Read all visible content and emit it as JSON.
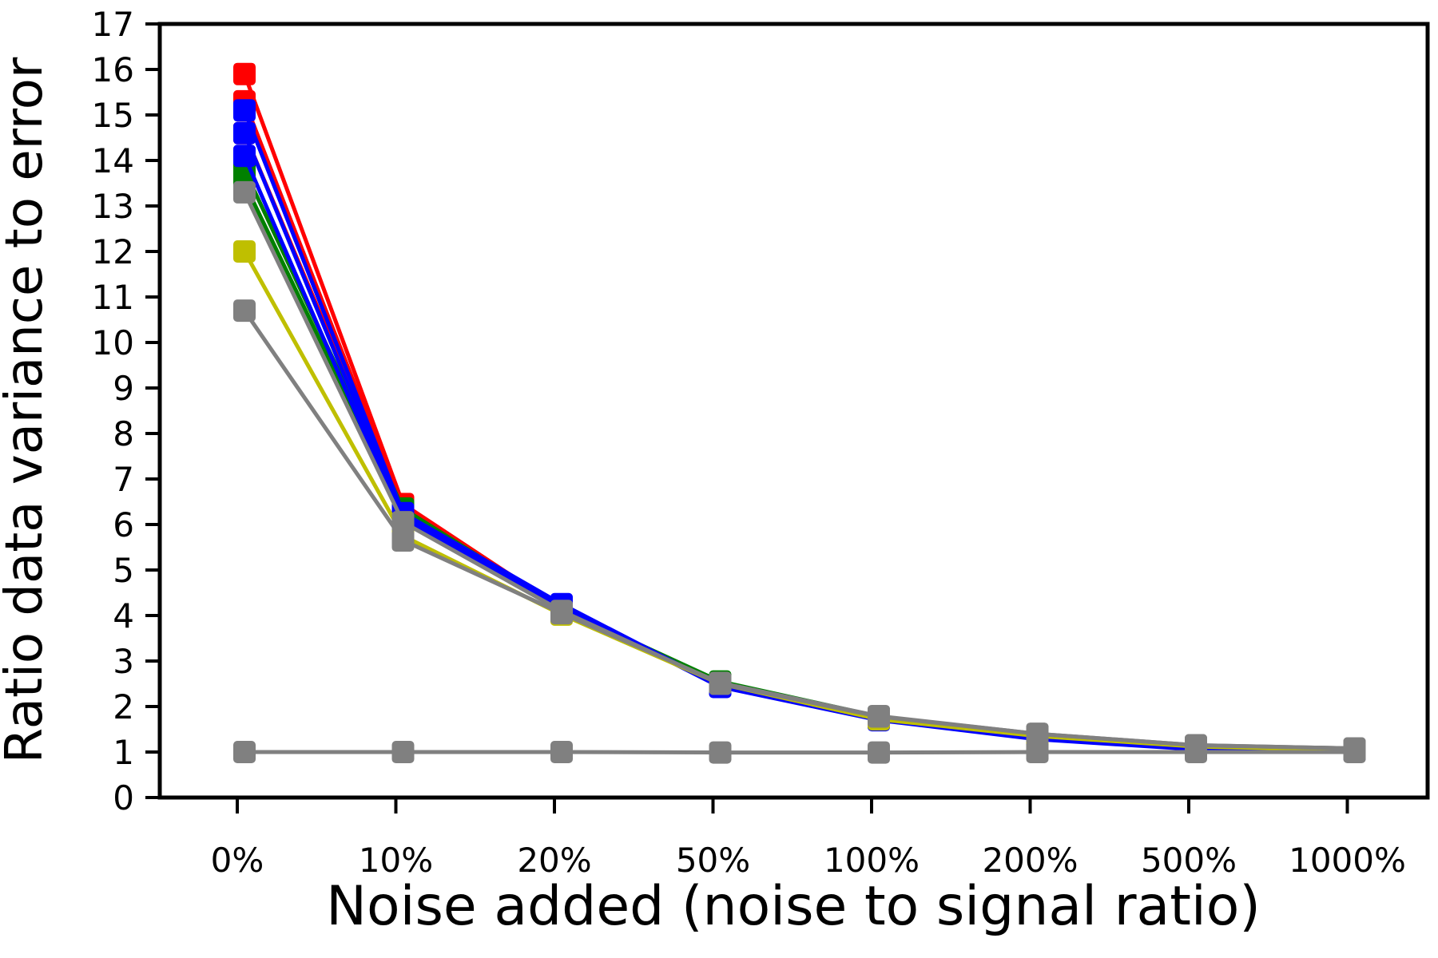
{
  "chart_data": {
    "type": "line",
    "title": "",
    "xlabel": "Noise added (noise to signal ratio)",
    "ylabel": "Ratio data variance to error",
    "categories": [
      "0%",
      "10%",
      "20%",
      "50%",
      "100%",
      "200%",
      "500%",
      "1000%"
    ],
    "ylim": [
      0,
      17
    ],
    "yticks": [
      0,
      1,
      2,
      3,
      4,
      5,
      6,
      7,
      8,
      9,
      10,
      11,
      12,
      13,
      14,
      15,
      16,
      17
    ],
    "marker": "square",
    "grid": false,
    "series": [
      {
        "color": "#ff0000",
        "values": [
          15.9,
          6.45,
          4.15,
          2.5,
          1.75,
          1.35,
          1.12,
          1.05
        ]
      },
      {
        "color": "#ff0000",
        "values": [
          15.3,
          6.35,
          4.12,
          2.48,
          1.73,
          1.33,
          1.1,
          1.04
        ]
      },
      {
        "color": "#ff0000",
        "values": [
          14.6,
          6.3,
          4.1,
          2.47,
          1.72,
          1.32,
          1.09,
          1.03
        ]
      },
      {
        "color": "#008000",
        "values": [
          13.8,
          6.35,
          4.15,
          2.55,
          1.78,
          1.38,
          1.14,
          1.06
        ]
      },
      {
        "color": "#008000",
        "values": [
          13.5,
          6.25,
          4.12,
          2.52,
          1.76,
          1.36,
          1.12,
          1.05
        ]
      },
      {
        "color": "#0000ff",
        "values": [
          15.1,
          6.25,
          4.25,
          2.45,
          1.72,
          1.3,
          1.08,
          1.03
        ]
      },
      {
        "color": "#0000ff",
        "values": [
          14.6,
          6.15,
          4.22,
          2.44,
          1.71,
          1.29,
          1.07,
          1.02
        ]
      },
      {
        "color": "#0000ff",
        "values": [
          14.1,
          6.05,
          4.2,
          2.43,
          1.7,
          1.28,
          1.06,
          1.02
        ]
      },
      {
        "color": "#bfbf00",
        "values": [
          12.0,
          5.75,
          4.02,
          2.5,
          1.72,
          1.35,
          1.12,
          1.05
        ]
      },
      {
        "color": "#808080",
        "values": [
          13.3,
          6.05,
          4.1,
          2.5,
          1.78,
          1.4,
          1.15,
          1.08
        ]
      },
      {
        "color": "#808080",
        "values": [
          10.7,
          5.65,
          4.05,
          2.52,
          1.79,
          1.4,
          1.15,
          1.08
        ]
      },
      {
        "color": "#808080",
        "values": [
          1.0,
          1.0,
          1.0,
          0.99,
          0.99,
          1.0,
          1.0,
          1.0
        ]
      }
    ]
  }
}
